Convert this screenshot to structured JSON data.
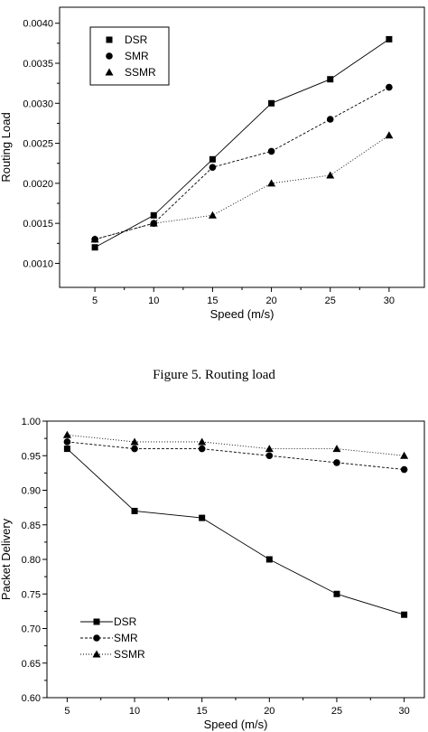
{
  "figure5": {
    "caption": "Figure 5.    Routing load",
    "chart_data": {
      "type": "line",
      "x": [
        5,
        10,
        15,
        20,
        25,
        30
      ],
      "xlabel": "Speed (m/s)",
      "ylabel": "Routing Load",
      "xlim": [
        2,
        33
      ],
      "ylim": [
        0.0007,
        0.0042
      ],
      "yticks": [
        "0.0010",
        "0.0015",
        "0.0020",
        "0.0025",
        "0.0030",
        "0.0035",
        "0.0040"
      ],
      "xticks": [
        "5",
        "10",
        "15",
        "20",
        "25",
        "30"
      ],
      "legend_position": "top-left",
      "series": [
        {
          "name": "DSR",
          "marker": "square",
          "line": "solid",
          "values": [
            0.0012,
            0.0016,
            0.0023,
            0.003,
            0.0033,
            0.0038
          ]
        },
        {
          "name": "SMR",
          "marker": "circle",
          "line": "dashed",
          "values": [
            0.0013,
            0.0015,
            0.0022,
            0.0024,
            0.0028,
            0.0032
          ]
        },
        {
          "name": "SSMR",
          "marker": "triangle",
          "line": "dotted",
          "values": [
            0.0013,
            0.0015,
            0.0016,
            0.002,
            0.0021,
            0.0026
          ]
        }
      ]
    }
  },
  "figure6": {
    "chart_data": {
      "type": "line",
      "x": [
        5,
        10,
        15,
        20,
        25,
        30
      ],
      "xlabel": "Speed (m/s)",
      "ylabel": "Packet Delivery",
      "xlim": [
        3.5,
        31.5
      ],
      "ylim": [
        0.6,
        1.0
      ],
      "yticks": [
        "0.60",
        "0.65",
        "0.70",
        "0.75",
        "0.80",
        "0.85",
        "0.90",
        "0.95",
        "1.00"
      ],
      "xticks": [
        "5",
        "10",
        "15",
        "20",
        "25",
        "30"
      ],
      "legend_position": "bottom-left",
      "series": [
        {
          "name": "DSR",
          "marker": "square",
          "line": "solid",
          "values": [
            0.96,
            0.87,
            0.86,
            0.8,
            0.75,
            0.72
          ]
        },
        {
          "name": "SMR",
          "marker": "circle",
          "line": "dashed",
          "values": [
            0.97,
            0.96,
            0.96,
            0.95,
            0.94,
            0.93
          ]
        },
        {
          "name": "SSMR",
          "marker": "triangle",
          "line": "dotted",
          "values": [
            0.98,
            0.97,
            0.97,
            0.96,
            0.96,
            0.95
          ]
        }
      ]
    }
  }
}
